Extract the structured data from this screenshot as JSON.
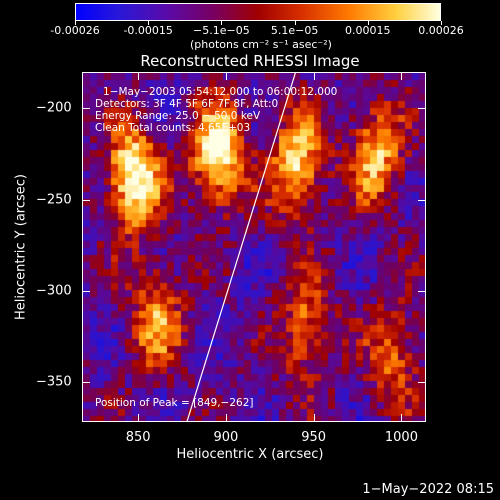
{
  "colorbar": {
    "ticks": [
      "-0.00026",
      "-0.00015",
      "−5.1e−05",
      "5.1e−05",
      "0.00015",
      "0.00026"
    ],
    "unit": "(photons cm⁻² s⁻¹ asec⁻²)"
  },
  "info": {
    "time_range": "1−May−2003 05:54:12.000 to 06:00:12.000",
    "detectors": "Detectors: 3F 4F 5F 6F 7F 8F, Att:0",
    "energy": "Energy Range: 25.0 − 50.0 keV",
    "clean": "Clean    Total counts: 4.65E+03",
    "peak": "Position of Peak = [849,−262]"
  },
  "footer": {
    "stamp": "1−May−2022 08:15"
  },
  "chart_data": {
    "type": "heatmap",
    "title": "Reconstructed RHESSI Image",
    "xlabel": "Heliocentric X (arcsec)",
    "ylabel": "Heliocentric Y (arcsec)",
    "xlim": [
      818,
      1014
    ],
    "ylim": [
      -372,
      -180
    ],
    "x_ticks": [
      "850",
      "900",
      "950",
      "1000"
    ],
    "x_tick_values": [
      850,
      900,
      950,
      1000
    ],
    "y_ticks": [
      "−200",
      "−250",
      "−300",
      "−350"
    ],
    "y_tick_values": [
      -200,
      -250,
      -300,
      -350
    ],
    "colorbar_range": [
      -0.00026,
      0.00026
    ],
    "peak_position": [
      849,
      -262
    ],
    "total_counts": 4650,
    "energy_range_kev": [
      25.0,
      50.0
    ],
    "limb_line": {
      "x": [
        877,
        939
      ],
      "y": [
        -372,
        -180
      ]
    },
    "bright_features": [
      {
        "x": 847,
        "y": -238,
        "strength": 1.0
      },
      {
        "x": 895,
        "y": -225,
        "strength": 0.95
      },
      {
        "x": 940,
        "y": -230,
        "strength": 0.8
      },
      {
        "x": 985,
        "y": -225,
        "strength": 0.7
      },
      {
        "x": 860,
        "y": -315,
        "strength": 0.6
      },
      {
        "x": 945,
        "y": -320,
        "strength": 0.55
      },
      {
        "x": 995,
        "y": -335,
        "strength": 0.5
      }
    ]
  }
}
